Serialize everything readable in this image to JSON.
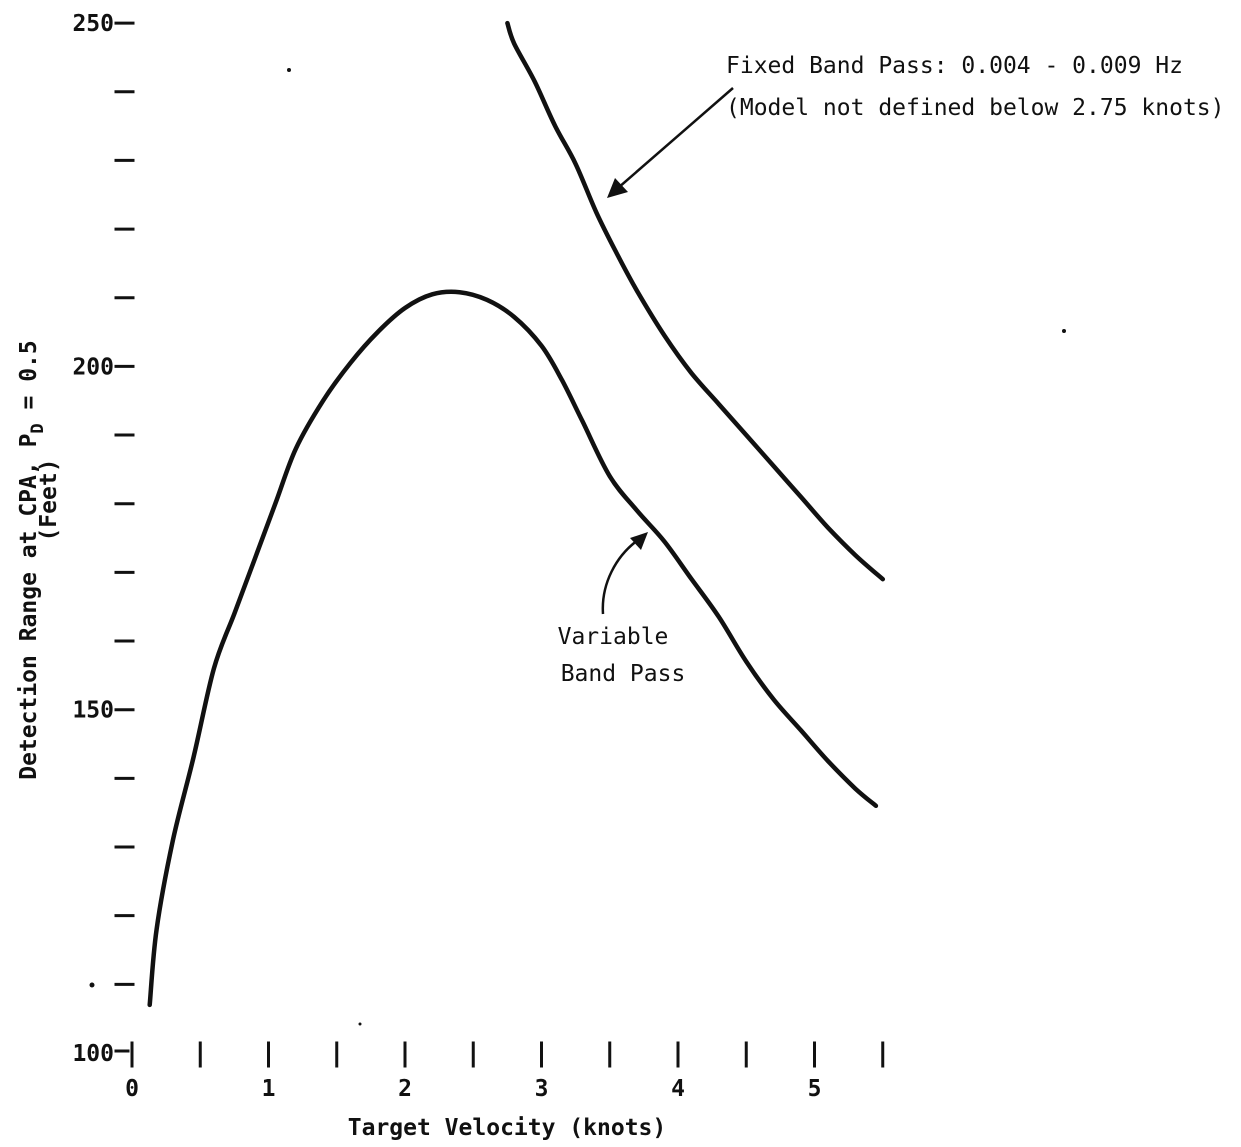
{
  "chart_data": {
    "type": "line",
    "title": "",
    "xlabel": "Target Velocity (knots)",
    "ylabel_line1": "Detection Range at CPA, P",
    "ylabel_sub": "D",
    "ylabel_tail": " = 0.5",
    "ylabel_line2": "(Feet)",
    "xlim": [
      0,
      5.5
    ],
    "ylim": [
      100,
      250
    ],
    "x_tick_labels": [
      {
        "x": 0,
        "label": "0"
      },
      {
        "x": 1,
        "label": "1"
      },
      {
        "x": 2,
        "label": "2"
      },
      {
        "x": 3,
        "label": "3"
      },
      {
        "x": 4,
        "label": "4"
      },
      {
        "x": 5,
        "label": "5"
      }
    ],
    "x_minor_ticks": [
      0.5,
      1.5,
      2.5,
      3.5,
      4.5,
      5.5
    ],
    "y_tick_labels": [
      {
        "y": 100,
        "label": "100"
      },
      {
        "y": 150,
        "label": "150"
      },
      {
        "y": 200,
        "label": "200"
      },
      {
        "y": 250,
        "label": "250"
      }
    ],
    "y_minor_ticks": [
      110,
      120,
      130,
      140,
      160,
      170,
      180,
      190,
      210,
      220,
      230,
      240
    ],
    "series": [
      {
        "name": "Variable Band Pass",
        "x": [
          0.13,
          0.18,
          0.3,
          0.45,
          0.6,
          0.75,
          0.9,
          1.05,
          1.2,
          1.4,
          1.6,
          1.8,
          2.0,
          2.2,
          2.4,
          2.6,
          2.8,
          3.0,
          3.15,
          3.3,
          3.5,
          3.7,
          3.9,
          4.1,
          4.3,
          4.5,
          4.7,
          4.9,
          5.1,
          5.3,
          5.45
        ],
        "y": [
          107,
          118,
          131,
          143,
          156,
          164,
          172,
          180,
          188,
          195,
          200.5,
          205,
          208.5,
          210.5,
          210.8,
          209.7,
          207.2,
          203,
          198,
          192,
          184,
          179,
          174.5,
          169,
          163.5,
          157,
          151.5,
          147,
          142.5,
          138.5,
          136
        ]
      },
      {
        "name": "Fixed Band Pass",
        "x": [
          2.75,
          2.8,
          2.95,
          3.1,
          3.25,
          3.4,
          3.55,
          3.7,
          3.9,
          4.1,
          4.3,
          4.5,
          4.7,
          4.9,
          5.1,
          5.3,
          5.5
        ],
        "y": [
          250,
          247,
          241.5,
          235,
          229.5,
          222.5,
          216.5,
          211,
          204.5,
          199,
          194.5,
          190,
          185.5,
          181,
          176.5,
          172.5,
          169
        ]
      }
    ],
    "annotations": {
      "fixed_line1": "Fixed Band Pass:  0.004 - 0.009 Hz",
      "fixed_line2": "(Model not defined below 2.75 knots)",
      "variable_line1": "Variable",
      "variable_line2": "Band Pass"
    }
  }
}
